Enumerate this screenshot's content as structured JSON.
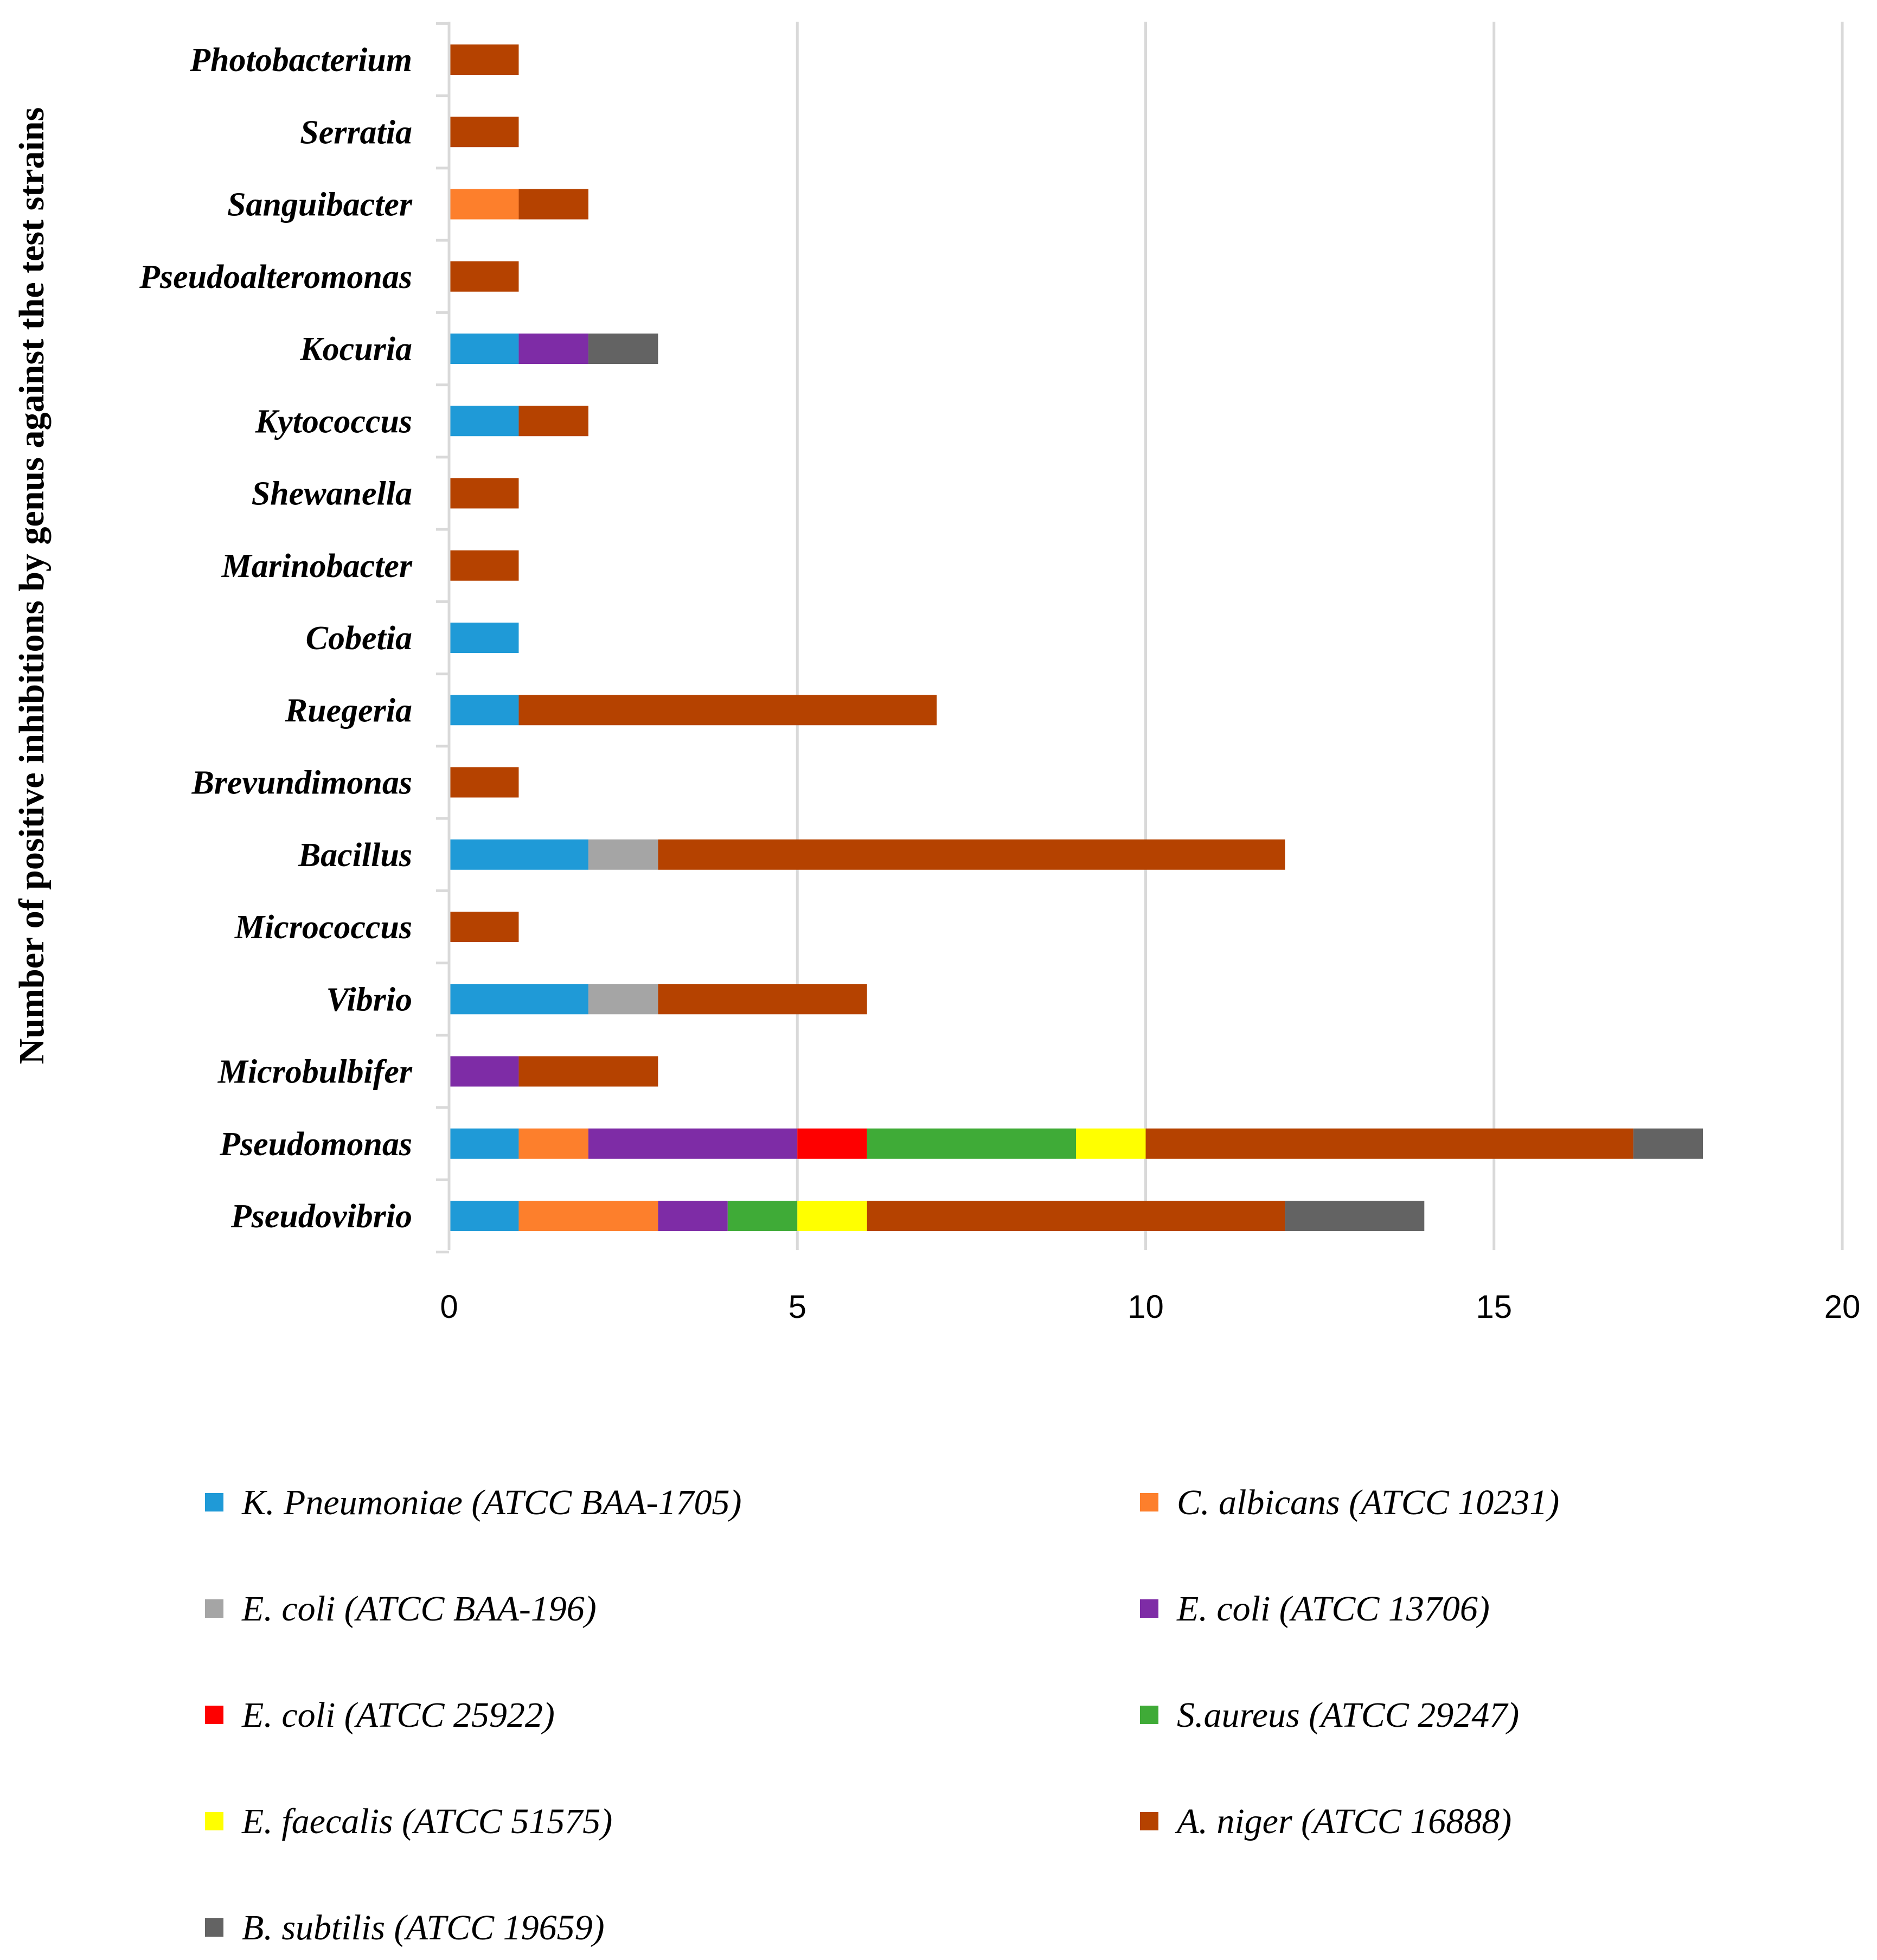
{
  "chart_data": {
    "type": "bar",
    "orientation": "horizontal",
    "stacked": true,
    "ylabel": "Number of positive inhibitions by genus against the test strains",
    "xlim": [
      0,
      20
    ],
    "xticks": [
      0,
      5,
      10,
      15,
      20
    ],
    "grid": true,
    "legend_position": "bottom",
    "categories": [
      "Photobacterium",
      "Serratia",
      "Sanguibacter",
      "Pseudoalteromonas",
      "Kocuria",
      "Kytococcus",
      "Shewanella",
      "Marinobacter",
      "Cobetia",
      "Ruegeria",
      "Brevundimonas",
      "Bacillus",
      "Micrococcus",
      "Vibrio",
      "Microbulbifer",
      "Pseudomonas",
      "Pseudovibrio"
    ],
    "series": [
      {
        "name": "K. Pneumoniae (ATCC BAA-1705)",
        "color": "#1f9ad7",
        "values": [
          0,
          0,
          0,
          0,
          1,
          1,
          0,
          0,
          1,
          1,
          0,
          2,
          0,
          2,
          0,
          1,
          1
        ]
      },
      {
        "name": "C. albicans (ATCC 10231)",
        "color": "#fd7f2c",
        "values": [
          0,
          0,
          1,
          0,
          0,
          0,
          0,
          0,
          0,
          0,
          0,
          0,
          0,
          0,
          0,
          1,
          2
        ]
      },
      {
        "name": "E. coli (ATCC BAA-196)",
        "color": "#a5a5a5",
        "values": [
          0,
          0,
          0,
          0,
          0,
          0,
          0,
          0,
          0,
          0,
          0,
          1,
          0,
          1,
          0,
          0,
          0
        ]
      },
      {
        "name": "E. coli (ATCC 13706)",
        "color": "#7e2ca6",
        "values": [
          0,
          0,
          0,
          0,
          1,
          0,
          0,
          0,
          0,
          0,
          0,
          0,
          0,
          0,
          1,
          3,
          1
        ]
      },
      {
        "name": "E. coli (ATCC 25922)",
        "color": "#fe0000",
        "values": [
          0,
          0,
          0,
          0,
          0,
          0,
          0,
          0,
          0,
          0,
          0,
          0,
          0,
          0,
          0,
          1,
          0
        ]
      },
      {
        "name": "S.aureus (ATCC 29247)",
        "color": "#3fab37",
        "values": [
          0,
          0,
          0,
          0,
          0,
          0,
          0,
          0,
          0,
          0,
          0,
          0,
          0,
          0,
          0,
          3,
          1
        ]
      },
      {
        "name": "E. faecalis (ATCC 51575)",
        "color": "#ffff00",
        "values": [
          0,
          0,
          0,
          0,
          0,
          0,
          0,
          0,
          0,
          0,
          0,
          0,
          0,
          0,
          0,
          1,
          1
        ]
      },
      {
        "name": "A. niger (ATCC 16888)",
        "color": "#b54200",
        "values": [
          1,
          1,
          1,
          1,
          0,
          1,
          1,
          1,
          0,
          6,
          1,
          9,
          1,
          3,
          2,
          7,
          6
        ]
      },
      {
        "name": "B. subtilis (ATCC 19659)",
        "color": "#636363",
        "values": [
          0,
          0,
          0,
          0,
          1,
          0,
          0,
          0,
          0,
          0,
          0,
          0,
          0,
          0,
          0,
          1,
          2
        ]
      }
    ]
  }
}
